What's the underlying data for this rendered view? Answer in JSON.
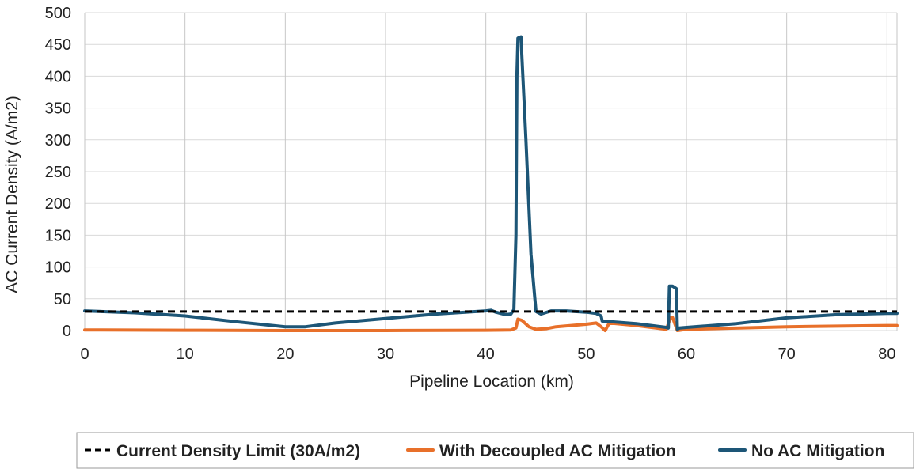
{
  "chart_data": {
    "type": "line",
    "xlabel": "Pipeline Location (km)",
    "ylabel": "AC Current Density (A/m2)",
    "xlim": [
      0,
      81
    ],
    "ylim": [
      0,
      500
    ],
    "xticks": [
      0,
      10,
      20,
      30,
      40,
      50,
      60,
      70,
      80
    ],
    "yticks": [
      0,
      50,
      100,
      150,
      200,
      250,
      300,
      350,
      400,
      450,
      500
    ],
    "grid": "vertical and horizontal",
    "legend_position": "bottom",
    "series": [
      {
        "name": "Current Density Limit (30A/m2)",
        "color": "#000000",
        "style": "dashed",
        "points": [
          [
            0,
            30
          ],
          [
            81,
            30
          ]
        ]
      },
      {
        "name": "With Decoupled AC Mitigation",
        "color": "#e8702a",
        "style": "solid",
        "points": [
          [
            0,
            1
          ],
          [
            10,
            0.5
          ],
          [
            20,
            0
          ],
          [
            30,
            0
          ],
          [
            40,
            0.5
          ],
          [
            42.5,
            1
          ],
          [
            43,
            4
          ],
          [
            43.2,
            18
          ],
          [
            43.6,
            16
          ],
          [
            44.3,
            6
          ],
          [
            45,
            2
          ],
          [
            46,
            3
          ],
          [
            47,
            6
          ],
          [
            50,
            10
          ],
          [
            51,
            12
          ],
          [
            51.5,
            6
          ],
          [
            51.9,
            0
          ],
          [
            52.3,
            12
          ],
          [
            55,
            8
          ],
          [
            58,
            2
          ],
          [
            58.4,
            20
          ],
          [
            58.6,
            21
          ],
          [
            59.1,
            0
          ],
          [
            60,
            2
          ],
          [
            70,
            6
          ],
          [
            80,
            8
          ],
          [
            81,
            8
          ]
        ]
      },
      {
        "name": "No AC Mitigation",
        "color": "#1d5677",
        "style": "solid",
        "points": [
          [
            0,
            31
          ],
          [
            5,
            28
          ],
          [
            10,
            23
          ],
          [
            15,
            14
          ],
          [
            20,
            6
          ],
          [
            22,
            6
          ],
          [
            25,
            12
          ],
          [
            30,
            19
          ],
          [
            35,
            26
          ],
          [
            40,
            31
          ],
          [
            40.5,
            32
          ],
          [
            41,
            29
          ],
          [
            42,
            25
          ],
          [
            42.5,
            26
          ],
          [
            42.8,
            33
          ],
          [
            43,
            150
          ],
          [
            43.1,
            400
          ],
          [
            43.2,
            460
          ],
          [
            43.5,
            462
          ],
          [
            44,
            300
          ],
          [
            44.5,
            120
          ],
          [
            45,
            30
          ],
          [
            45.5,
            26
          ],
          [
            46.5,
            31
          ],
          [
            48,
            31
          ],
          [
            50,
            29
          ],
          [
            51,
            27
          ],
          [
            51.5,
            23
          ],
          [
            51.6,
            15
          ],
          [
            55,
            11
          ],
          [
            58,
            5
          ],
          [
            58.2,
            4
          ],
          [
            58.3,
            70
          ],
          [
            58.6,
            70
          ],
          [
            59,
            66
          ],
          [
            59.1,
            2
          ],
          [
            59.3,
            4
          ],
          [
            60,
            5
          ],
          [
            65,
            11
          ],
          [
            70,
            20
          ],
          [
            75,
            25
          ],
          [
            80,
            27
          ],
          [
            81,
            27
          ]
        ]
      }
    ]
  }
}
